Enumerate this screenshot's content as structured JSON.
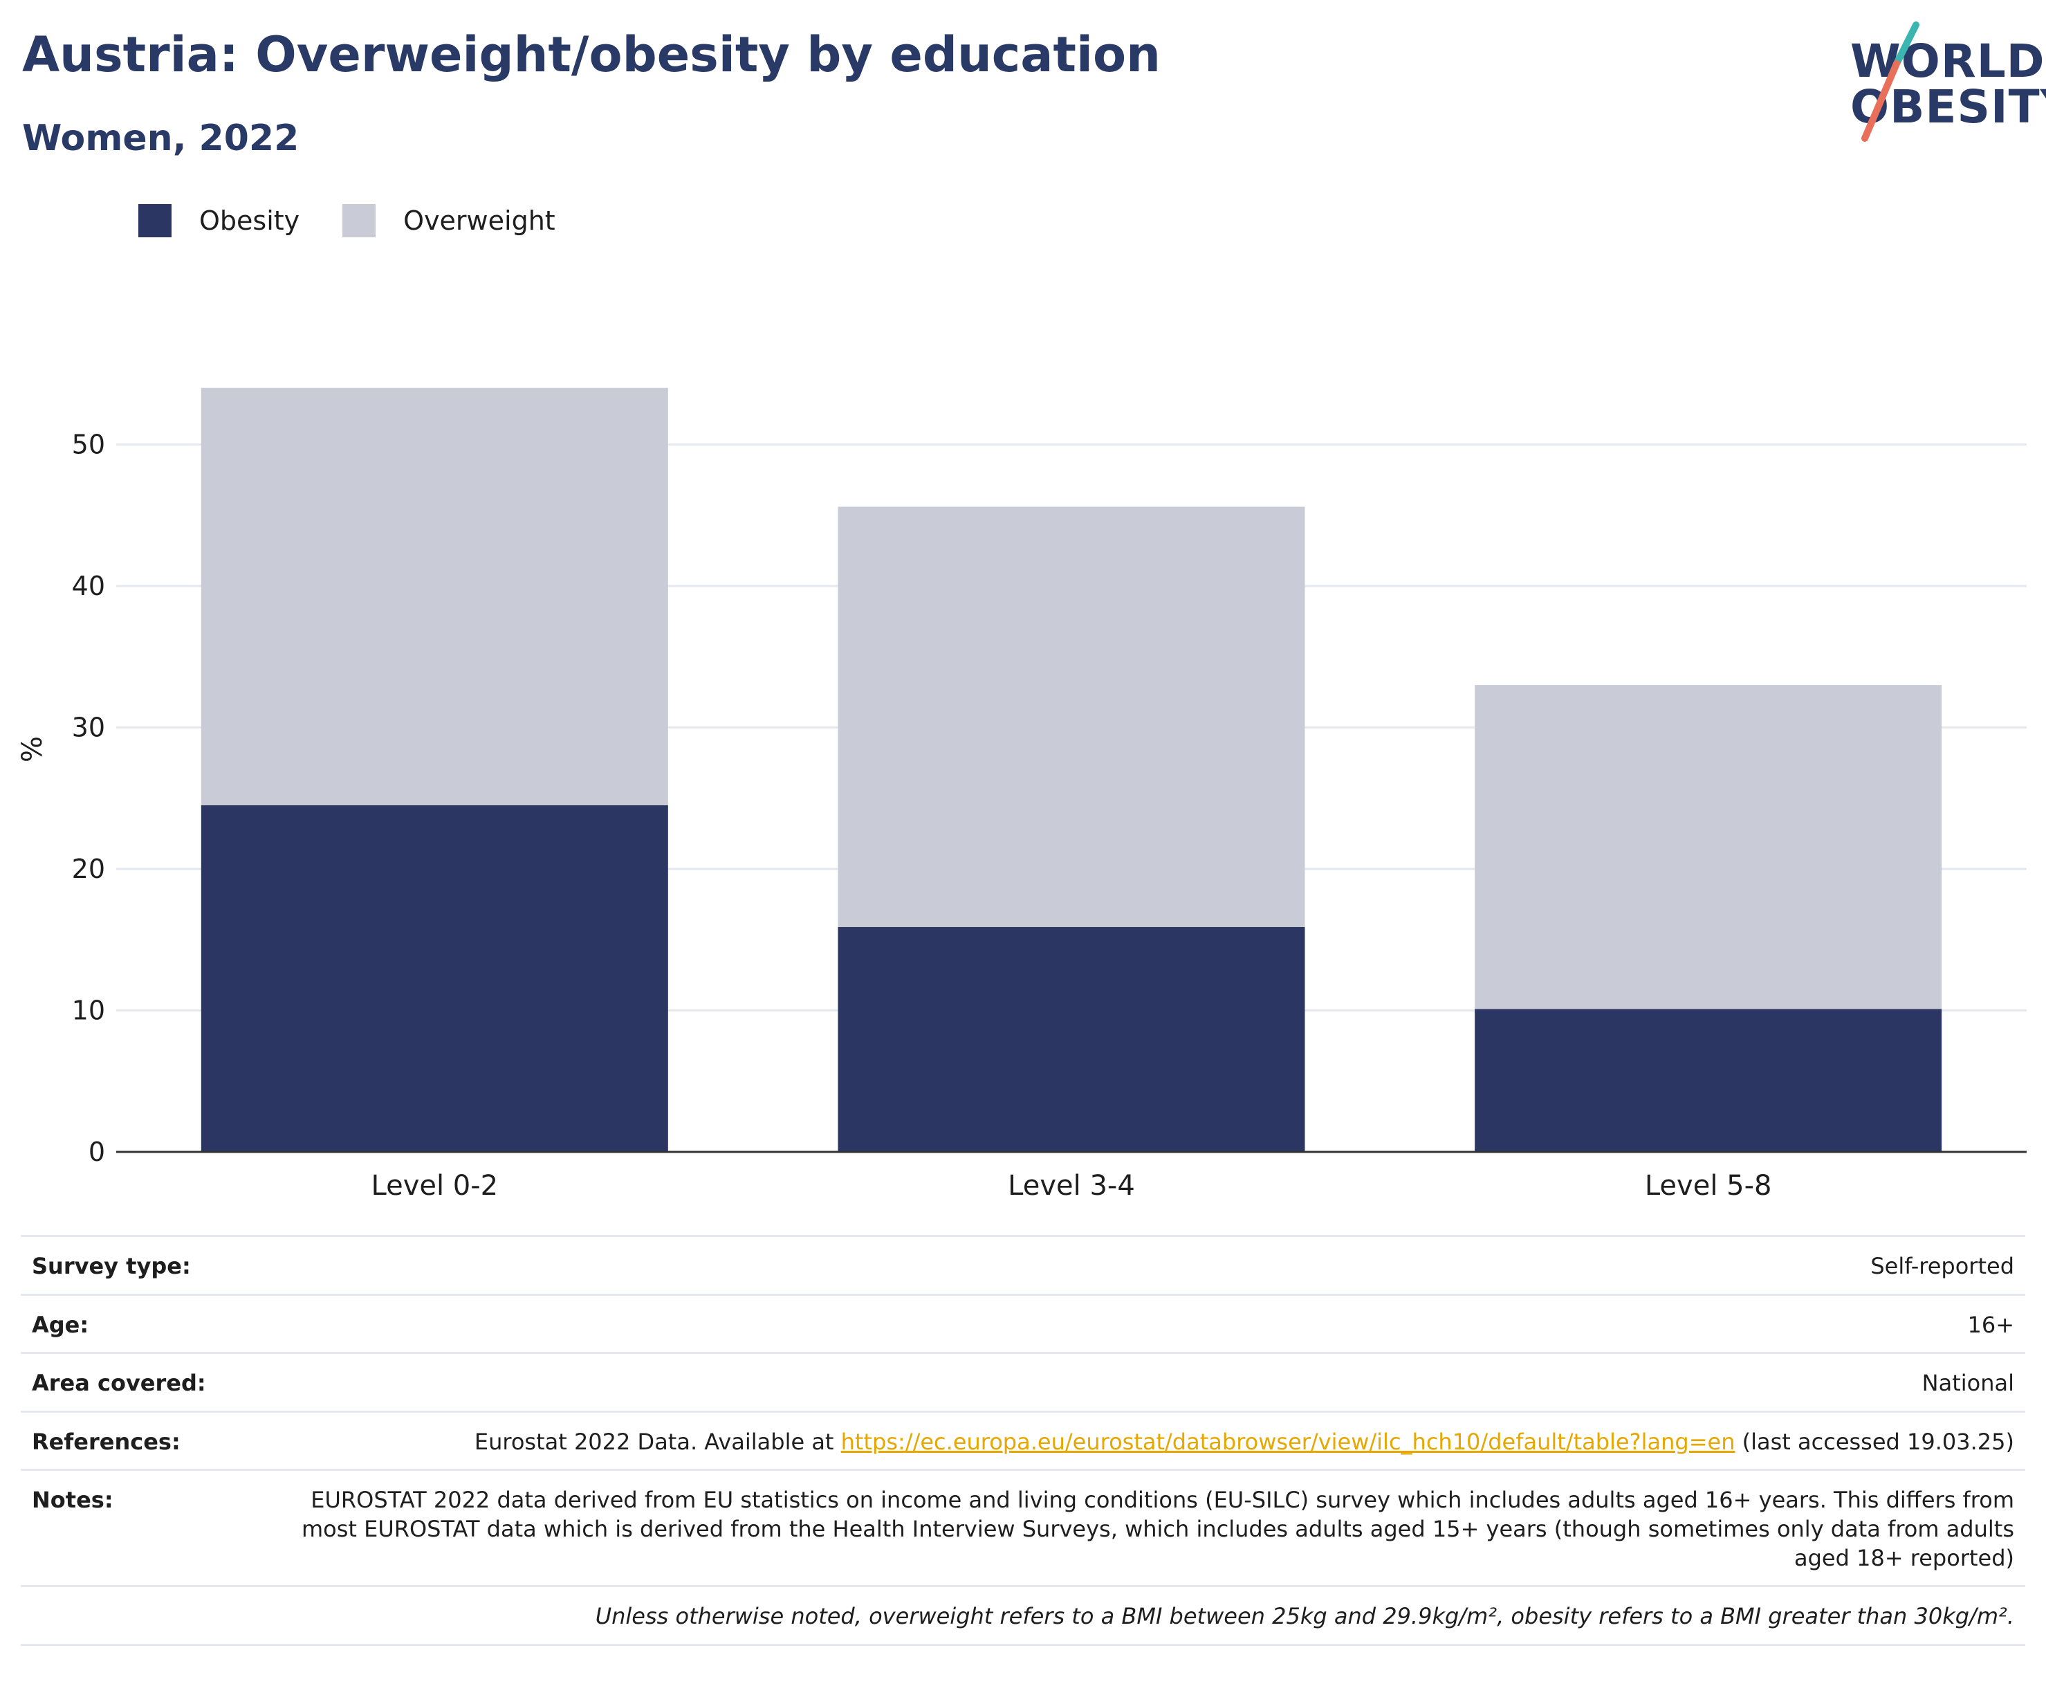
{
  "header": {
    "title": "Austria: Overweight/obesity by education",
    "subtitle": "Women, 2022"
  },
  "logo": {
    "line1": "WORLD",
    "line2": "OBESITY",
    "accent_teal": "#3ab5b0",
    "accent_coral": "#e8705a"
  },
  "colors": {
    "obesity": "#2b3663",
    "overweight": "#c9cbd6",
    "title": "#2a3a66",
    "link": "#e6a700",
    "grid": "#e6e8ef"
  },
  "chart_data": {
    "type": "bar",
    "stacked": true,
    "categories": [
      "Level 0-2",
      "Level 3-4",
      "Level 5-8"
    ],
    "series": [
      {
        "name": "Obesity",
        "values": [
          24.5,
          15.9,
          10.1
        ]
      },
      {
        "name": "Overweight",
        "values": [
          29.5,
          29.7,
          22.9
        ]
      }
    ],
    "ylabel": "%",
    "ylim": [
      0,
      58
    ],
    "yticks": [
      0,
      10,
      20,
      30,
      40,
      50
    ],
    "grid": true,
    "legend_position": "top-left"
  },
  "info": {
    "survey_type_label": "Survey type:",
    "survey_type_value": "Self-reported",
    "age_label": "Age:",
    "age_value": "16+",
    "area_label": "Area covered:",
    "area_value": "National",
    "references_label": "References:",
    "references_prefix": "Eurostat 2022 Data. Available at ",
    "references_link": "https://ec.europa.eu/eurostat/databrowser/view/ilc_hch10/default/table?lang=en",
    "references_suffix": " (last accessed 19.03.25)",
    "notes_label": "Notes:",
    "notes_value": "EUROSTAT 2022 data derived from EU statistics on income and living conditions (EU-SILC) survey which includes adults aged 16+ years. This differs from most EUROSTAT data which is derived from the Health Interview Surveys, which includes adults aged 15+ years (though sometimes only data from adults aged 18+ reported)",
    "footnote": "Unless otherwise noted, overweight refers to a BMI between 25kg and 29.9kg/m², obesity refers to a BMI greater than 30kg/m²."
  }
}
